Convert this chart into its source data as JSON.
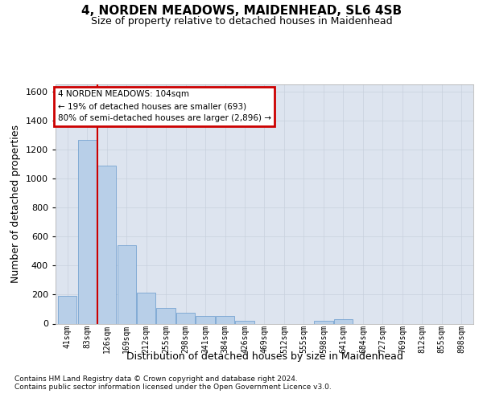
{
  "title1": "4, NORDEN MEADOWS, MAIDENHEAD, SL6 4SB",
  "title2": "Size of property relative to detached houses in Maidenhead",
  "xlabel": "Distribution of detached houses by size in Maidenhead",
  "ylabel": "Number of detached properties",
  "categories": [
    "41sqm",
    "83sqm",
    "126sqm",
    "169sqm",
    "212sqm",
    "255sqm",
    "298sqm",
    "341sqm",
    "384sqm",
    "426sqm",
    "469sqm",
    "512sqm",
    "555sqm",
    "598sqm",
    "641sqm",
    "684sqm",
    "727sqm",
    "769sqm",
    "812sqm",
    "855sqm",
    "898sqm"
  ],
  "values": [
    190,
    1270,
    1090,
    540,
    215,
    110,
    75,
    55,
    50,
    20,
    0,
    0,
    0,
    20,
    30,
    0,
    0,
    0,
    0,
    0,
    0
  ],
  "bar_color": "#b8cfe8",
  "bar_edgecolor": "#6699cc",
  "redline_x": 1.52,
  "annotation_text": "4 NORDEN MEADOWS: 104sqm\n← 19% of detached houses are smaller (693)\n80% of semi-detached houses are larger (2,896) →",
  "annotation_box_facecolor": "#ffffff",
  "annotation_box_edgecolor": "#cc0000",
  "redline_color": "#cc0000",
  "ylim_max": 1650,
  "yticks": [
    0,
    200,
    400,
    600,
    800,
    1000,
    1200,
    1400,
    1600
  ],
  "grid_color": "#c8d0dd",
  "background_color": "#dde4ef",
  "footer1": "Contains HM Land Registry data © Crown copyright and database right 2024.",
  "footer2": "Contains public sector information licensed under the Open Government Licence v3.0."
}
